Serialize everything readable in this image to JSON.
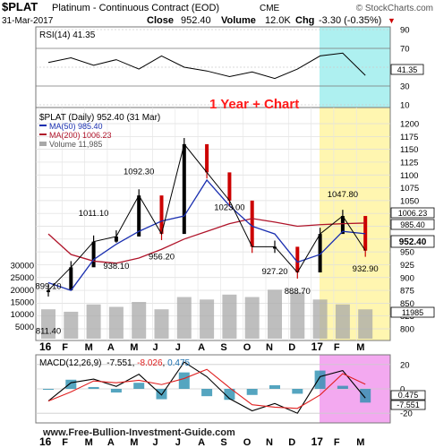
{
  "header": {
    "symbol": "$PLAT",
    "name": "Platinum - Continuous Contract (EOD)",
    "exchange": "CME",
    "brand": "© StockCharts.com",
    "date": "31-Mar-2017",
    "close_label": "Close",
    "close_value": "952.40",
    "volume_label": "Volume",
    "volume_value": "12.0K",
    "chg_label": "Chg",
    "chg_value": "-3.30 (-0.35%)",
    "chg_marker": "▼"
  },
  "overlay_label": "1 Year + Chart",
  "watermark": "www.Free-Bullion-Investment-Guide.com",
  "colors": {
    "price_up": "#000000",
    "price_down": "#cc0000",
    "ma50": "#1a2fb0",
    "ma200": "#b0142a",
    "volume": "#a8a8a8",
    "highlight_yellow": "#fff6b0",
    "highlight_cyan": "#aef0f0",
    "highlight_pink": "#f3a9f0",
    "overlay_text": "#ff1a1a"
  },
  "rsi_panel": {
    "legend": "RSI(14) 41.35",
    "ticks": [
      "90",
      "70",
      "50",
      "30",
      "10"
    ],
    "value_badge": "41.35"
  },
  "price_panel": {
    "legend_main": "$PLAT (Daily) 952.40 (31 Mar)",
    "legend_ma50": "MA(50) 985.40",
    "legend_ma200": "MA(200) 1006.23",
    "legend_volume": "Volume 11,985",
    "price_ticks": [
      "1200",
      "1175",
      "1150",
      "1125",
      "1100",
      "1075",
      "1050",
      "1025",
      "1000",
      "975",
      "950",
      "925",
      "900",
      "875",
      "850",
      "825",
      "800"
    ],
    "volume_ticks": [
      "30000",
      "25000",
      "20000",
      "15000",
      "10000",
      "5000"
    ],
    "badges": {
      "ma200": "1006.23",
      "ma50": "985.40",
      "close": "952.40",
      "volume": "11985"
    },
    "annotations": [
      "899.10",
      "811.40",
      "1011.10",
      "938.10",
      "1092.30",
      "956.20",
      "1023.00",
      "927.20",
      "888.70",
      "1047.80",
      "932.90"
    ]
  },
  "macd_panel": {
    "legend_prefix": "MACD(12,26,9)",
    "legend_macd": "-7.551",
    "legend_signal": "-8.026",
    "legend_hist": "0.475",
    "ticks": [
      "20",
      "0",
      "-20"
    ],
    "badges": {
      "hist": "0.475",
      "macd": "-7.551"
    }
  },
  "x_axis": {
    "labels": [
      "16",
      "F",
      "M",
      "A",
      "M",
      "J",
      "J",
      "A",
      "S",
      "O",
      "N",
      "D",
      "17",
      "F",
      "M"
    ]
  },
  "chart_data": {
    "type": "line",
    "title": "Platinum - Continuous Contract (EOD)",
    "series": [
      {
        "name": "$PLAT (Daily)",
        "x": [
          "2016-01",
          "2016-02",
          "2016-03",
          "2016-04",
          "2016-05",
          "2016-06",
          "2016-07",
          "2016-08",
          "2016-09",
          "2016-10",
          "2016-11",
          "2016-12",
          "2017-01",
          "2017-02",
          "2017-03"
        ],
        "values": [
          875,
          920,
          970,
          980,
          1060,
          985,
          1160,
          1105,
          1050,
          960,
          960,
          910,
          985,
          1020,
          952.4
        ]
      },
      {
        "name": "MA(50)",
        "values": [
          890,
          875,
          935,
          965,
          990,
          1010,
          1020,
          1090,
          1040,
          1000,
          985,
          930,
          945,
          990,
          985.4
        ]
      },
      {
        "name": "MA(200)",
        "values": [
          985,
          945,
          932,
          928,
          938,
          955,
          975,
          990,
          1005,
          1015,
          1008,
          1000,
          1003,
          1005,
          1006.23
        ]
      }
    ],
    "price_range": [
      800,
      1200
    ],
    "volume": {
      "label": "Volume",
      "values": [
        12000,
        11000,
        14000,
        13000,
        15000,
        12000,
        17000,
        16000,
        18000,
        17000,
        20000,
        19000,
        16000,
        14000,
        11985
      ],
      "range": [
        0,
        30000
      ]
    },
    "rsi": {
      "label": "RSI(14)",
      "last": 41.35,
      "range": [
        10,
        90
      ],
      "values": [
        55,
        60,
        52,
        58,
        48,
        62,
        50,
        46,
        40,
        45,
        38,
        48,
        62,
        65,
        41.35
      ]
    },
    "macd": {
      "label": "MACD(12,26,9)",
      "macd": -7.551,
      "signal": -8.026,
      "histogram": 0.475,
      "range": [
        -25,
        25
      ],
      "values": [
        -10,
        5,
        8,
        2,
        12,
        -5,
        22,
        10,
        -8,
        -18,
        -12,
        -20,
        10,
        15,
        -7.551
      ]
    },
    "extremes": [
      {
        "label": "899.10",
        "value": 899.1
      },
      {
        "label": "811.40",
        "value": 811.4
      },
      {
        "label": "1011.10",
        "value": 1011.1
      },
      {
        "label": "938.10",
        "value": 938.1
      },
      {
        "label": "1092.30",
        "value": 1092.3
      },
      {
        "label": "956.20",
        "value": 956.2
      },
      {
        "label": "1023.00",
        "value": 1023.0
      },
      {
        "label": "927.20",
        "value": 927.2
      },
      {
        "label": "888.70",
        "value": 888.7
      },
      {
        "label": "1047.80",
        "value": 1047.8
      },
      {
        "label": "932.90",
        "value": 932.9
      }
    ],
    "grid": true
  }
}
